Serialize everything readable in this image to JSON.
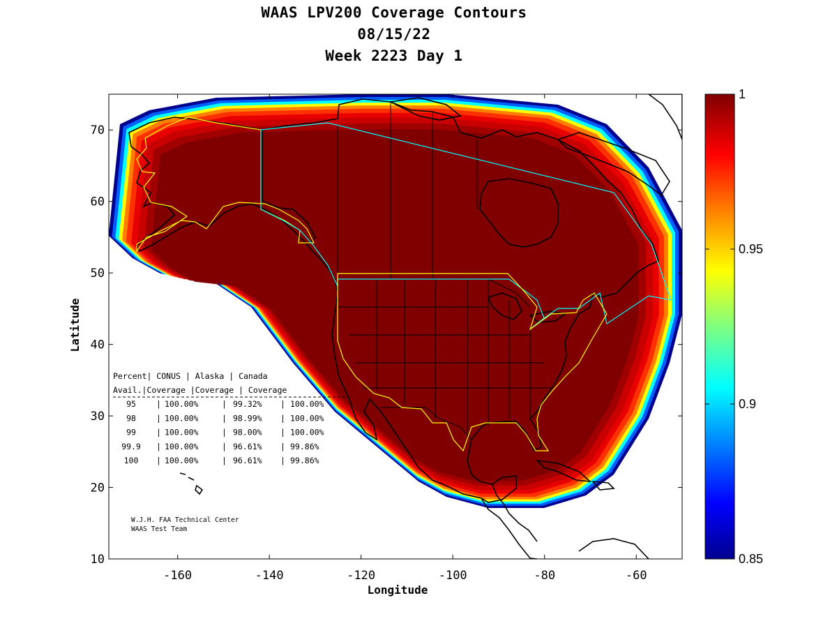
{
  "title": {
    "line1": "WAAS LPV200 Coverage Contours",
    "line2": "08/15/22",
    "line3": "Week 2223 Day 1"
  },
  "axes": {
    "xlabel": "Longitude",
    "ylabel": "Latitude",
    "xlim": [
      -175,
      -50
    ],
    "ylim": [
      10,
      75
    ],
    "xticks": [
      {
        "v": -160,
        "label": "-160"
      },
      {
        "v": -140,
        "label": "-140"
      },
      {
        "v": -120,
        "label": "-120"
      },
      {
        "v": -100,
        "label": "-100"
      },
      {
        "v": -80,
        "label": "-80"
      },
      {
        "v": -60,
        "label": "-60"
      }
    ],
    "yticks": [
      {
        "v": 10,
        "label": "10"
      },
      {
        "v": 20,
        "label": "20"
      },
      {
        "v": 30,
        "label": "30"
      },
      {
        "v": 40,
        "label": "40"
      },
      {
        "v": 50,
        "label": "50"
      },
      {
        "v": 60,
        "label": "60"
      },
      {
        "v": 70,
        "label": "70"
      }
    ]
  },
  "colorbar": {
    "min": 0.85,
    "max": 1,
    "ticks": [
      {
        "v": 1,
        "label": "1"
      },
      {
        "v": 0.95,
        "label": "0.95"
      },
      {
        "v": 0.9,
        "label": "0.9"
      },
      {
        "v": 0.85,
        "label": "0.85"
      }
    ],
    "colormap": "jet",
    "colors": [
      "#00008f",
      "#0000ff",
      "#0080ff",
      "#00ffff",
      "#80ff80",
      "#ffff00",
      "#ff8000",
      "#ff0000",
      "#800000"
    ]
  },
  "coverage_colors": {
    "outer_band": [
      "#00008f",
      "#0060ff",
      "#00ffff",
      "#ffff00",
      "#ff8000",
      "#ff3000",
      "#e80000",
      "#c80000",
      "#a00000"
    ],
    "core": "#800000"
  },
  "boundary_colors": {
    "conus": "#ffff00",
    "alaska": "#ffff00",
    "canada": "#00ffff"
  },
  "stats_table": {
    "header1": [
      "Percent",
      "CONUS",
      "Alaska",
      "Canada"
    ],
    "header2": [
      "Avail.",
      "Coverage",
      "Coverage",
      "Coverage"
    ],
    "rows": [
      {
        "pct": "95",
        "conus": "100.00%",
        "alaska": "99.32%",
        "canada": "100.00%"
      },
      {
        "pct": "98",
        "conus": "100.00%",
        "alaska": "98.99%",
        "canada": "100.00%"
      },
      {
        "pct": "99",
        "conus": "100.00%",
        "alaska": "98.00%",
        "canada": "100.00%"
      },
      {
        "pct": "99.9",
        "conus": "100.00%",
        "alaska": "96.61%",
        "canada": "99.86%"
      },
      {
        "pct": "100",
        "conus": "100.00%",
        "alaska": "96.61%",
        "canada": "99.86%"
      }
    ]
  },
  "credits": {
    "line1": "W.J.H. FAA Technical Center",
    "line2": "WAAS Test Team"
  }
}
